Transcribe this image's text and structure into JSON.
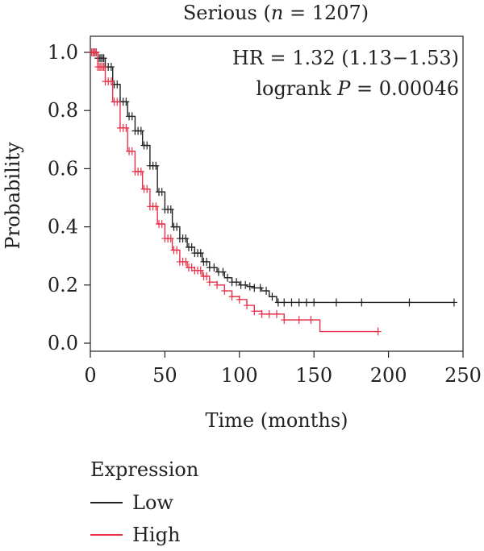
{
  "chart_data": {
    "type": "line",
    "title": "Serious (n = 1207)",
    "title_parts": [
      "Serious (",
      "n",
      " = 1207)"
    ],
    "xlabel": "Time (months)",
    "ylabel": "Probability",
    "xlim": [
      0,
      250
    ],
    "ylim": [
      0.0,
      1.0
    ],
    "xticks": [
      0,
      50,
      100,
      150,
      200,
      250
    ],
    "yticks": [
      0.0,
      0.2,
      0.4,
      0.6,
      0.8,
      1.0
    ],
    "ytick_labels": [
      "0.0",
      "0.2",
      "0.4",
      "0.6",
      "0.8",
      "1.0"
    ],
    "grid": false,
    "annotations": {
      "hr": "HR = 1.32 (1.13−1.53)",
      "logrank_prefix": "logrank ",
      "logrank_p": "P",
      "logrank_suffix": " = 0.00046"
    },
    "legend": {
      "title": "Expression",
      "placement": "bottom-left",
      "entries": [
        "Low",
        "High"
      ]
    },
    "series": [
      {
        "name": "Low",
        "color": "#222222",
        "x": [
          0,
          5,
          10,
          15,
          20,
          25,
          30,
          35,
          40,
          45,
          50,
          55,
          60,
          65,
          70,
          75,
          80,
          85,
          90,
          95,
          100,
          105,
          110,
          115,
          120,
          125,
          130,
          150,
          200,
          244
        ],
        "y": [
          1.0,
          0.98,
          0.95,
          0.89,
          0.83,
          0.78,
          0.73,
          0.68,
          0.61,
          0.52,
          0.46,
          0.4,
          0.36,
          0.33,
          0.31,
          0.28,
          0.26,
          0.245,
          0.225,
          0.21,
          0.2,
          0.195,
          0.19,
          0.18,
          0.16,
          0.14,
          0.14,
          0.14,
          0.14,
          0.14
        ],
        "censor_x": [
          1,
          2,
          3,
          4,
          5,
          6,
          7,
          8,
          9,
          10,
          12,
          14,
          16,
          18,
          20,
          22,
          24,
          26,
          28,
          30,
          32,
          34,
          36,
          38,
          40,
          42,
          44,
          46,
          48,
          50,
          52,
          54,
          56,
          58,
          60,
          62,
          64,
          66,
          68,
          70,
          72,
          74,
          76,
          78,
          80,
          83,
          86,
          89,
          92,
          95,
          98,
          101,
          104,
          107,
          110,
          114,
          118,
          122,
          126,
          130,
          135,
          140,
          145,
          150,
          165,
          182,
          214,
          244
        ]
      },
      {
        "name": "High",
        "color": "#e8324a",
        "x": [
          0,
          5,
          10,
          15,
          20,
          25,
          30,
          35,
          40,
          45,
          50,
          55,
          60,
          65,
          70,
          75,
          80,
          85,
          90,
          95,
          100,
          105,
          110,
          115,
          120,
          130,
          140,
          150,
          153,
          154,
          170,
          193
        ],
        "y": [
          1.0,
          0.95,
          0.9,
          0.83,
          0.74,
          0.66,
          0.59,
          0.53,
          0.47,
          0.41,
          0.36,
          0.32,
          0.28,
          0.26,
          0.25,
          0.23,
          0.21,
          0.2,
          0.18,
          0.16,
          0.15,
          0.13,
          0.11,
          0.1,
          0.1,
          0.08,
          0.08,
          0.08,
          0.08,
          0.04,
          0.04,
          0.04
        ],
        "censor_x": [
          1,
          2,
          3,
          4,
          5,
          6,
          7,
          8,
          9,
          10,
          12,
          14,
          16,
          18,
          20,
          22,
          24,
          26,
          28,
          30,
          32,
          34,
          36,
          38,
          40,
          42,
          44,
          46,
          48,
          50,
          52,
          54,
          56,
          58,
          60,
          62,
          64,
          66,
          68,
          70,
          72,
          74,
          76,
          78,
          80,
          85,
          90,
          95,
          100,
          105,
          110,
          115,
          120,
          125,
          130,
          140,
          148,
          193
        ]
      }
    ]
  }
}
